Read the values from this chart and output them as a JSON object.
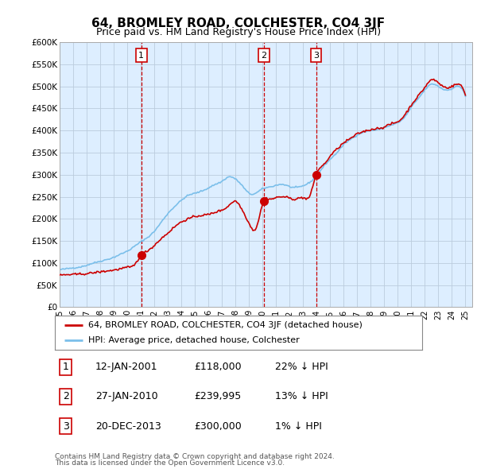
{
  "title": "64, BROMLEY ROAD, COLCHESTER, CO4 3JF",
  "subtitle": "Price paid vs. HM Land Registry's House Price Index (HPI)",
  "ylabel_ticks": [
    "£0",
    "£50K",
    "£100K",
    "£150K",
    "£200K",
    "£250K",
    "£300K",
    "£350K",
    "£400K",
    "£450K",
    "£500K",
    "£550K",
    "£600K"
  ],
  "ytick_vals": [
    0,
    50000,
    100000,
    150000,
    200000,
    250000,
    300000,
    350000,
    400000,
    450000,
    500000,
    550000,
    600000
  ],
  "ylim": [
    0,
    600000
  ],
  "sale_labels": [
    "1",
    "2",
    "3"
  ],
  "sale_pct": [
    "22% ↓ HPI",
    "13% ↓ HPI",
    "1% ↓ HPI"
  ],
  "sale_date_str": [
    "12-JAN-2001",
    "27-JAN-2010",
    "20-DEC-2013"
  ],
  "sale_price_str": [
    "£118,000",
    "£239,995",
    "£300,000"
  ],
  "legend_line1": "64, BROMLEY ROAD, COLCHESTER, CO4 3JF (detached house)",
  "legend_line2": "HPI: Average price, detached house, Colchester",
  "footer1": "Contains HM Land Registry data © Crown copyright and database right 2024.",
  "footer2": "This data is licensed under the Open Government Licence v3.0.",
  "hpi_color": "#7bbfea",
  "price_color": "#cc0000",
  "marker_color": "#cc0000",
  "vline_color": "#cc0000",
  "chart_bg_color": "#ddeeff",
  "background_color": "#ffffff",
  "grid_color": "#bbccdd",
  "title_fontsize": 11,
  "subtitle_fontsize": 9
}
